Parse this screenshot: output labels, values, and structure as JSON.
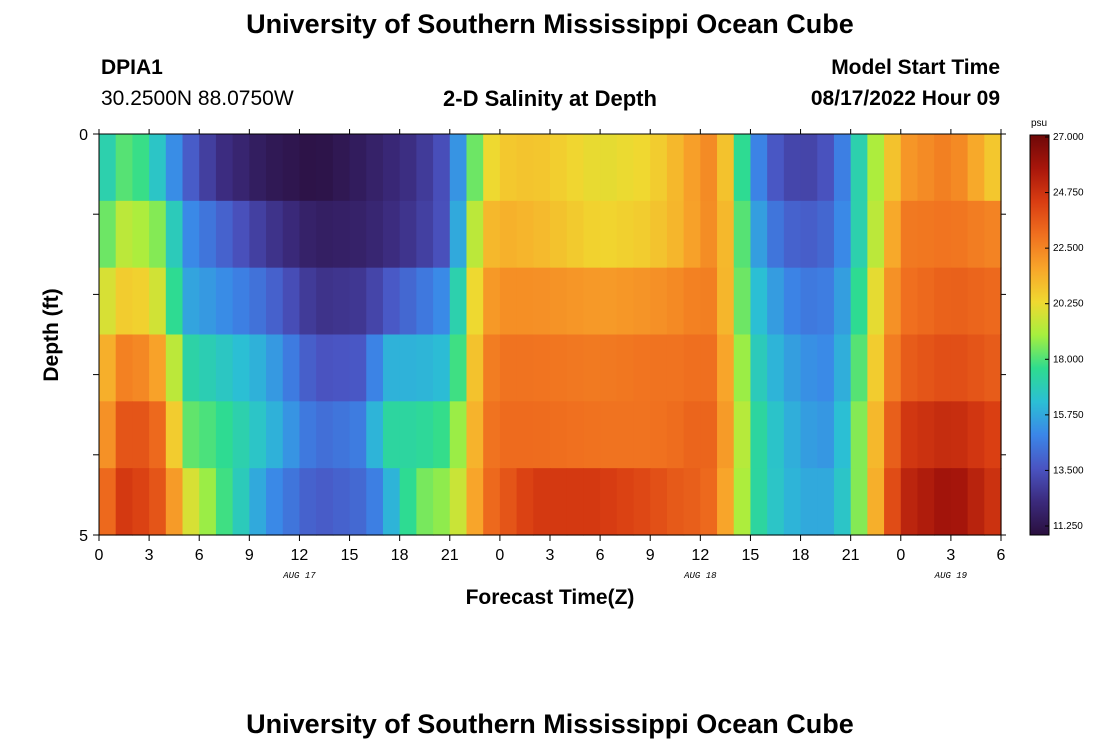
{
  "header": {
    "title": "University of Southern Mississippi Ocean Cube",
    "station_id": "DPIA1",
    "coordinates": "30.2500N  88.0750W",
    "subtitle": "2-D Salinity at Depth",
    "model_start_label": "Model Start Time",
    "model_start_value": "08/17/2022 Hour 09"
  },
  "footer": {
    "title": "University of Southern Mississippi Ocean Cube"
  },
  "chart_data": {
    "type": "heatmap",
    "title": "2-D Salinity at Depth",
    "xlabel": "Forecast Time(Z)",
    "ylabel": "Depth (ft)",
    "x_range": [
      0,
      54
    ],
    "y_range": [
      0,
      5
    ],
    "x_tick_labels": [
      "0",
      "3",
      "6",
      "9",
      "12",
      "15",
      "18",
      "21",
      "0",
      "3",
      "6",
      "9",
      "12",
      "15",
      "18",
      "21",
      "0",
      "3",
      "6"
    ],
    "date_labels": [
      {
        "text": "AUG 17",
        "at": 12
      },
      {
        "text": "AUG 18",
        "at": 36
      },
      {
        "text": "AUG 19",
        "at": 51
      }
    ],
    "y_tick_labels": [
      {
        "text": "0",
        "at": 0
      },
      {
        "text": "5",
        "at": 5
      }
    ],
    "colorbar": {
      "unit": "psu",
      "min": 11.25,
      "max": 27.0,
      "labels": [
        "27.000",
        "24.750",
        "22.500",
        "20.250",
        "18.000",
        "15.750",
        "13.500",
        "11.250"
      ],
      "colors": [
        "#2a0f3e",
        "#3b2a7c",
        "#4a54c2",
        "#3b86e8",
        "#2bbfd4",
        "#2edc8f",
        "#a6ef3e",
        "#f0d830",
        "#f8a52a",
        "#f0701f",
        "#d93d12",
        "#a8160b",
        "#6e0808"
      ]
    },
    "depth_layers": 6,
    "time_step_hours": 1,
    "key_times": [
      0,
      1,
      2,
      4,
      5,
      7,
      10,
      13,
      16,
      17,
      19,
      21,
      22,
      23,
      24,
      26,
      30,
      33,
      35,
      36,
      37,
      38,
      39,
      40,
      42,
      44,
      45,
      46,
      47,
      48,
      51,
      54
    ],
    "salinity_keyframes": [
      [
        16.5,
        18.0,
        18.5,
        16.2,
        14.5,
        12.8,
        11.8,
        11.4,
        12.0,
        12.3,
        12.8,
        14.0,
        17.0,
        20.0,
        20.8,
        21.0,
        20.2,
        20.5,
        21.5,
        22.3,
        22.5,
        19.5,
        16.0,
        14.2,
        13.2,
        14.0,
        16.0,
        18.5,
        20.0,
        22.0,
        22.8,
        20.5
      ],
      [
        17.5,
        19.5,
        19.5,
        18.5,
        15.5,
        14.5,
        13.0,
        12.0,
        12.2,
        12.5,
        13.0,
        14.0,
        18.0,
        21.0,
        21.5,
        21.3,
        20.5,
        20.8,
        21.5,
        22.2,
        22.5,
        20.0,
        16.5,
        15.0,
        14.0,
        14.5,
        16.0,
        18.5,
        20.5,
        22.8,
        23.0,
        22.5
      ],
      [
        19.5,
        20.5,
        21.0,
        19.5,
        16.0,
        15.5,
        14.5,
        12.8,
        13.0,
        13.8,
        14.6,
        15.5,
        19.0,
        21.8,
        22.3,
        22.3,
        22.0,
        22.2,
        22.5,
        22.8,
        22.6,
        20.0,
        17.0,
        16.0,
        14.8,
        15.0,
        16.5,
        19.0,
        21.5,
        23.0,
        23.5,
        23.2
      ],
      [
        20.5,
        22.5,
        22.8,
        21.5,
        17.5,
        17.0,
        16.0,
        13.8,
        14.0,
        16.2,
        16.2,
        16.5,
        19.5,
        22.5,
        23.0,
        23.0,
        22.8,
        23.0,
        23.0,
        23.2,
        23.0,
        20.5,
        17.5,
        16.5,
        15.5,
        15.2,
        17.0,
        19.5,
        22.0,
        23.5,
        24.0,
        23.5
      ],
      [
        21.0,
        23.5,
        24.0,
        23.0,
        18.5,
        18.0,
        16.5,
        14.5,
        15.0,
        17.5,
        17.5,
        18.0,
        20.0,
        22.8,
        23.2,
        23.2,
        23.0,
        23.0,
        23.2,
        23.5,
        23.2,
        20.8,
        18.0,
        17.0,
        15.8,
        15.5,
        17.5,
        20.0,
        22.5,
        24.5,
        25.0,
        24.2
      ],
      [
        22.0,
        24.5,
        24.5,
        23.5,
        20.5,
        18.5,
        15.5,
        14.0,
        14.5,
        15.5,
        18.5,
        19.0,
        20.5,
        23.0,
        23.5,
        24.5,
        24.5,
        24.0,
        23.5,
        23.5,
        23.0,
        20.5,
        18.0,
        17.0,
        16.0,
        16.0,
        17.5,
        20.0,
        23.0,
        25.0,
        26.0,
        24.5
      ]
    ]
  }
}
